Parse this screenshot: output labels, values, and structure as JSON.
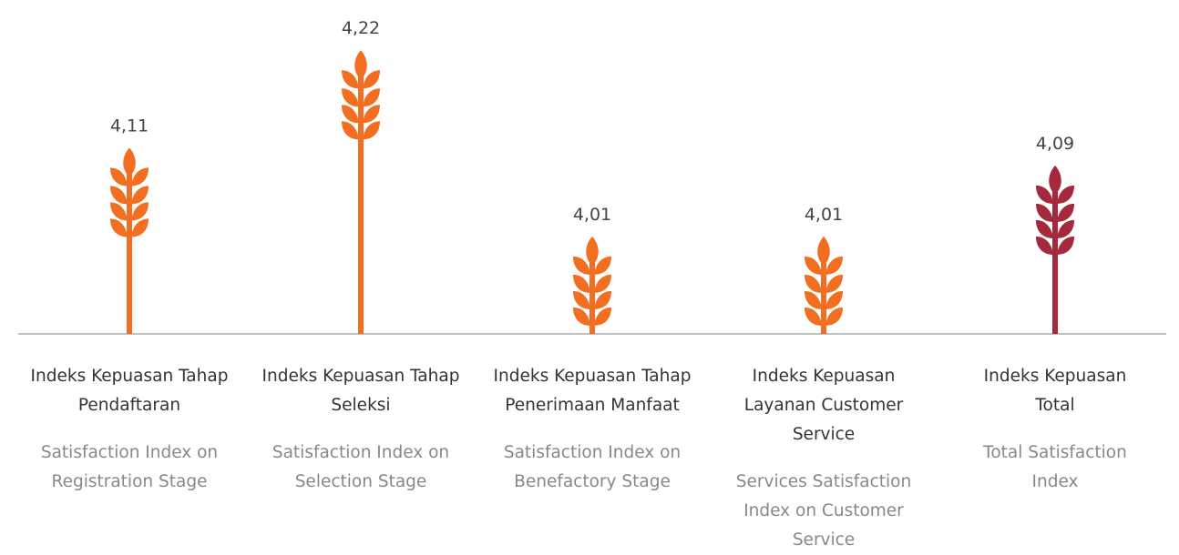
{
  "chart_data": {
    "type": "pictorial-bar",
    "categories": [
      "Indeks Kepuasan Tahap Pendaftaran",
      "Indeks Kepuasan Tahap Seleksi",
      "Indeks Kepuasan Tahap Penerimaan Manfaat",
      "Indeks Kepuasan Layanan Customer Service",
      "Indeks Kepuasan Total"
    ],
    "subtitles": [
      "Satisfaction Index on Registration Stage",
      "Satisfaction Index on Selection Stage",
      "Satisfaction Index on Benefactory Stage",
      "Services Satisfaction Index on Customer Service",
      "Total Satisfaction Index"
    ],
    "values": [
      4.11,
      4.22,
      4.01,
      4.01,
      4.09
    ],
    "value_labels": [
      "4,11",
      "4,22",
      "4,01",
      "4,01",
      "4,09"
    ],
    "colors": [
      "#f26f21",
      "#f26f21",
      "#f26f21",
      "#f26f21",
      "#a4293d"
    ],
    "ylim": [
      3.9,
      4.25
    ]
  }
}
